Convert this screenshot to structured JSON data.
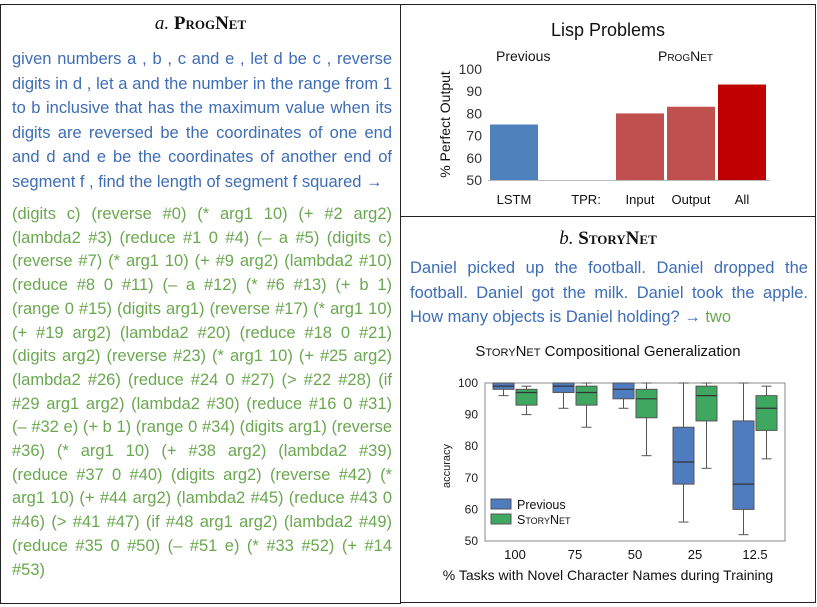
{
  "panel_a": {
    "label": "a.",
    "title": "ProgNet",
    "nl_text": "given numbers a , b , c and e , let d be c , reverse digits in d , let a and the number in the range from 1 to b inclusive that has the maximum value when its digits are reversed be the coordinates of one end and d and e be the coordinates of another end of segment f , find the length of segment f squared →",
    "program_text": "(digits c) (reverse #0) (* arg1 10) (+ #2 arg2) (lambda2 #3) (reduce #1 0 #4) (– a #5) (digits c) (reverse #7) (* arg1 10) (+ #9 arg2) (lambda2 #10) (reduce #8 0 #11) (– a #12) (* #6 #13) (+ b 1) (range 0 #15) (digits arg1) (reverse #17) (* arg1 10) (+ #19 arg2) (lambda2 #20) (reduce #18 0 #21) (digits arg2) (reverse #23) (* arg1 10) (+ #25 arg2) (lambda2 #26) (reduce #24 0 #27) (> #22 #28) (if #29 arg1 arg2) (lambda2 #30) (reduce #16 0 #31) (– #32 e) (+ b 1) (range 0 #34) (digits arg1) (reverse #36) (* arg1 10) (+ #38 arg2) (lambda2 #39) (reduce #37 0 #40) (digits arg2) (reverse #42) (* arg1 10) (+ #44 arg2) (lambda2 #45) (reduce #43 0 #46) (> #41 #47) (if #48 arg1 arg2) (lambda2 #49) (reduce #35 0 #50) (– #51 e) (* #33 #52) (+ #14 #53)",
    "colors": {
      "nl": "#3d6db5",
      "program": "#6aa84f"
    }
  },
  "lisp_chart": {
    "title": "Lisp Problems",
    "group_previous": "Previous",
    "group_prognet": "ProgNet",
    "tpr_label": "TPR:"
  },
  "panel_b": {
    "label": "b.",
    "title": "StoryNet",
    "story_text": "Daniel picked up the football. Daniel dropped the football. Daniel got the milk. Daniel took the apple. How many objects is Daniel holding? →",
    "answer": "two",
    "chart_title_prefix": "StoryNet",
    "chart_title_rest": " Compositional Generalization"
  },
  "chart_data": [
    {
      "type": "bar",
      "title": "Lisp Problems",
      "ylabel": "% Perfect Output",
      "ylim": [
        50,
        100
      ],
      "yticks": [
        50,
        60,
        70,
        80,
        90,
        100
      ],
      "categories": [
        "LSTM",
        "Input",
        "Output",
        "All"
      ],
      "values": [
        75,
        80,
        83,
        93
      ],
      "colors": [
        "#4f81bd",
        "#c0504d",
        "#c0504d",
        "#c00000"
      ],
      "grid": false
    },
    {
      "type": "box",
      "title": "StoryNet Compositional Generalization",
      "xlabel": "% Tasks with Novel Character Names during Training",
      "ylabel": "accuracy",
      "ylim": [
        50,
        100
      ],
      "yticks": [
        50,
        60,
        70,
        80,
        90,
        100
      ],
      "categories": [
        "100",
        "75",
        "50",
        "25",
        "12.5"
      ],
      "legend_position": "bottom-left",
      "series": [
        {
          "name": "Previous",
          "color": "#4f7bbf",
          "boxes": [
            {
              "min": 96,
              "q1": 98,
              "median": 99,
              "q3": 100,
              "max": 100
            },
            {
              "min": 92,
              "q1": 97,
              "median": 99,
              "q3": 100,
              "max": 100
            },
            {
              "min": 92,
              "q1": 95,
              "median": 98,
              "q3": 100,
              "max": 100
            },
            {
              "min": 56,
              "q1": 68,
              "median": 75,
              "q3": 86,
              "max": 100
            },
            {
              "min": 52,
              "q1": 60,
              "median": 68,
              "q3": 88,
              "max": 100
            }
          ]
        },
        {
          "name": "StoryNet",
          "color": "#3fa860",
          "boxes": [
            {
              "min": 90,
              "q1": 93,
              "median": 97,
              "q3": 98,
              "max": 99
            },
            {
              "min": 86,
              "q1": 93,
              "median": 97,
              "q3": 99,
              "max": 100
            },
            {
              "min": 77,
              "q1": 89,
              "median": 95,
              "q3": 98,
              "max": 100
            },
            {
              "min": 73,
              "q1": 88,
              "median": 96,
              "q3": 99,
              "max": 100
            },
            {
              "min": 76,
              "q1": 85,
              "median": 92,
              "q3": 96,
              "max": 99
            }
          ]
        }
      ]
    }
  ]
}
